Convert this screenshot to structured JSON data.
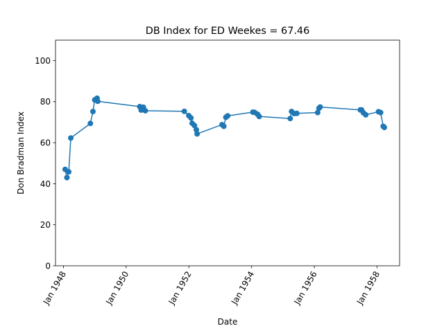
{
  "chart_data": {
    "type": "line",
    "title": "DB Index for ED Weekes = 67.46",
    "xlabel": "Date",
    "ylabel": "Don Bradman Index",
    "ylim": [
      0,
      110
    ],
    "yticks": [
      0,
      20,
      40,
      60,
      80,
      100
    ],
    "xlim": [
      "1947-10-01",
      "1958-09-20"
    ],
    "xticks": [
      {
        "date": "1948-01-01",
        "label": "Jan 1948"
      },
      {
        "date": "1950-01-01",
        "label": "Jan 1950"
      },
      {
        "date": "1952-01-01",
        "label": "Jan 1952"
      },
      {
        "date": "1954-01-01",
        "label": "Jan 1954"
      },
      {
        "date": "1956-01-01",
        "label": "Jan 1956"
      },
      {
        "date": "1958-01-01",
        "label": "Jan 1958"
      }
    ],
    "grid": false,
    "color": "#1f77b4",
    "series": [
      {
        "x": [
          "1948-01-21",
          "1948-02-11",
          "1948-03-03",
          "1948-03-27",
          "1948-11-10",
          "1948-12-10",
          "1948-12-31",
          "1949-01-27",
          "1949-02-04",
          "1950-06-08",
          "1950-06-24",
          "1950-07-20",
          "1950-08-12",
          "1951-11-09",
          "1951-12-31",
          "1952-01-25",
          "1952-02-08",
          "1952-03-06",
          "1952-03-28",
          "1952-04-06",
          "1953-01-21",
          "1953-02-11",
          "1953-03-07",
          "1953-03-28",
          "1954-01-15",
          "1954-02-05",
          "1954-03-10",
          "1954-03-30",
          "1955-03-26",
          "1955-04-11",
          "1955-05-11",
          "1955-06-11",
          "1956-02-09",
          "1956-02-24",
          "1956-03-09",
          "1957-06-20",
          "1957-07-04",
          "1957-07-25",
          "1957-08-22",
          "1958-01-17",
          "1958-02-11",
          "1958-03-13",
          "1958-03-26"
        ],
        "y": [
          47.0,
          43.0,
          45.8,
          62.3,
          69.4,
          75.2,
          80.9,
          81.7,
          80.2,
          77.6,
          75.9,
          77.3,
          75.6,
          75.3,
          73.2,
          72.1,
          69.5,
          68.4,
          66.3,
          64.3,
          68.8,
          68.0,
          72.4,
          73.1,
          74.9,
          74.8,
          73.9,
          72.8,
          71.8,
          75.2,
          74.2,
          74.3,
          74.7,
          76.8,
          77.4,
          76.0,
          76.0,
          74.6,
          73.6,
          75.1,
          74.7,
          68.0,
          67.46
        ]
      }
    ]
  }
}
